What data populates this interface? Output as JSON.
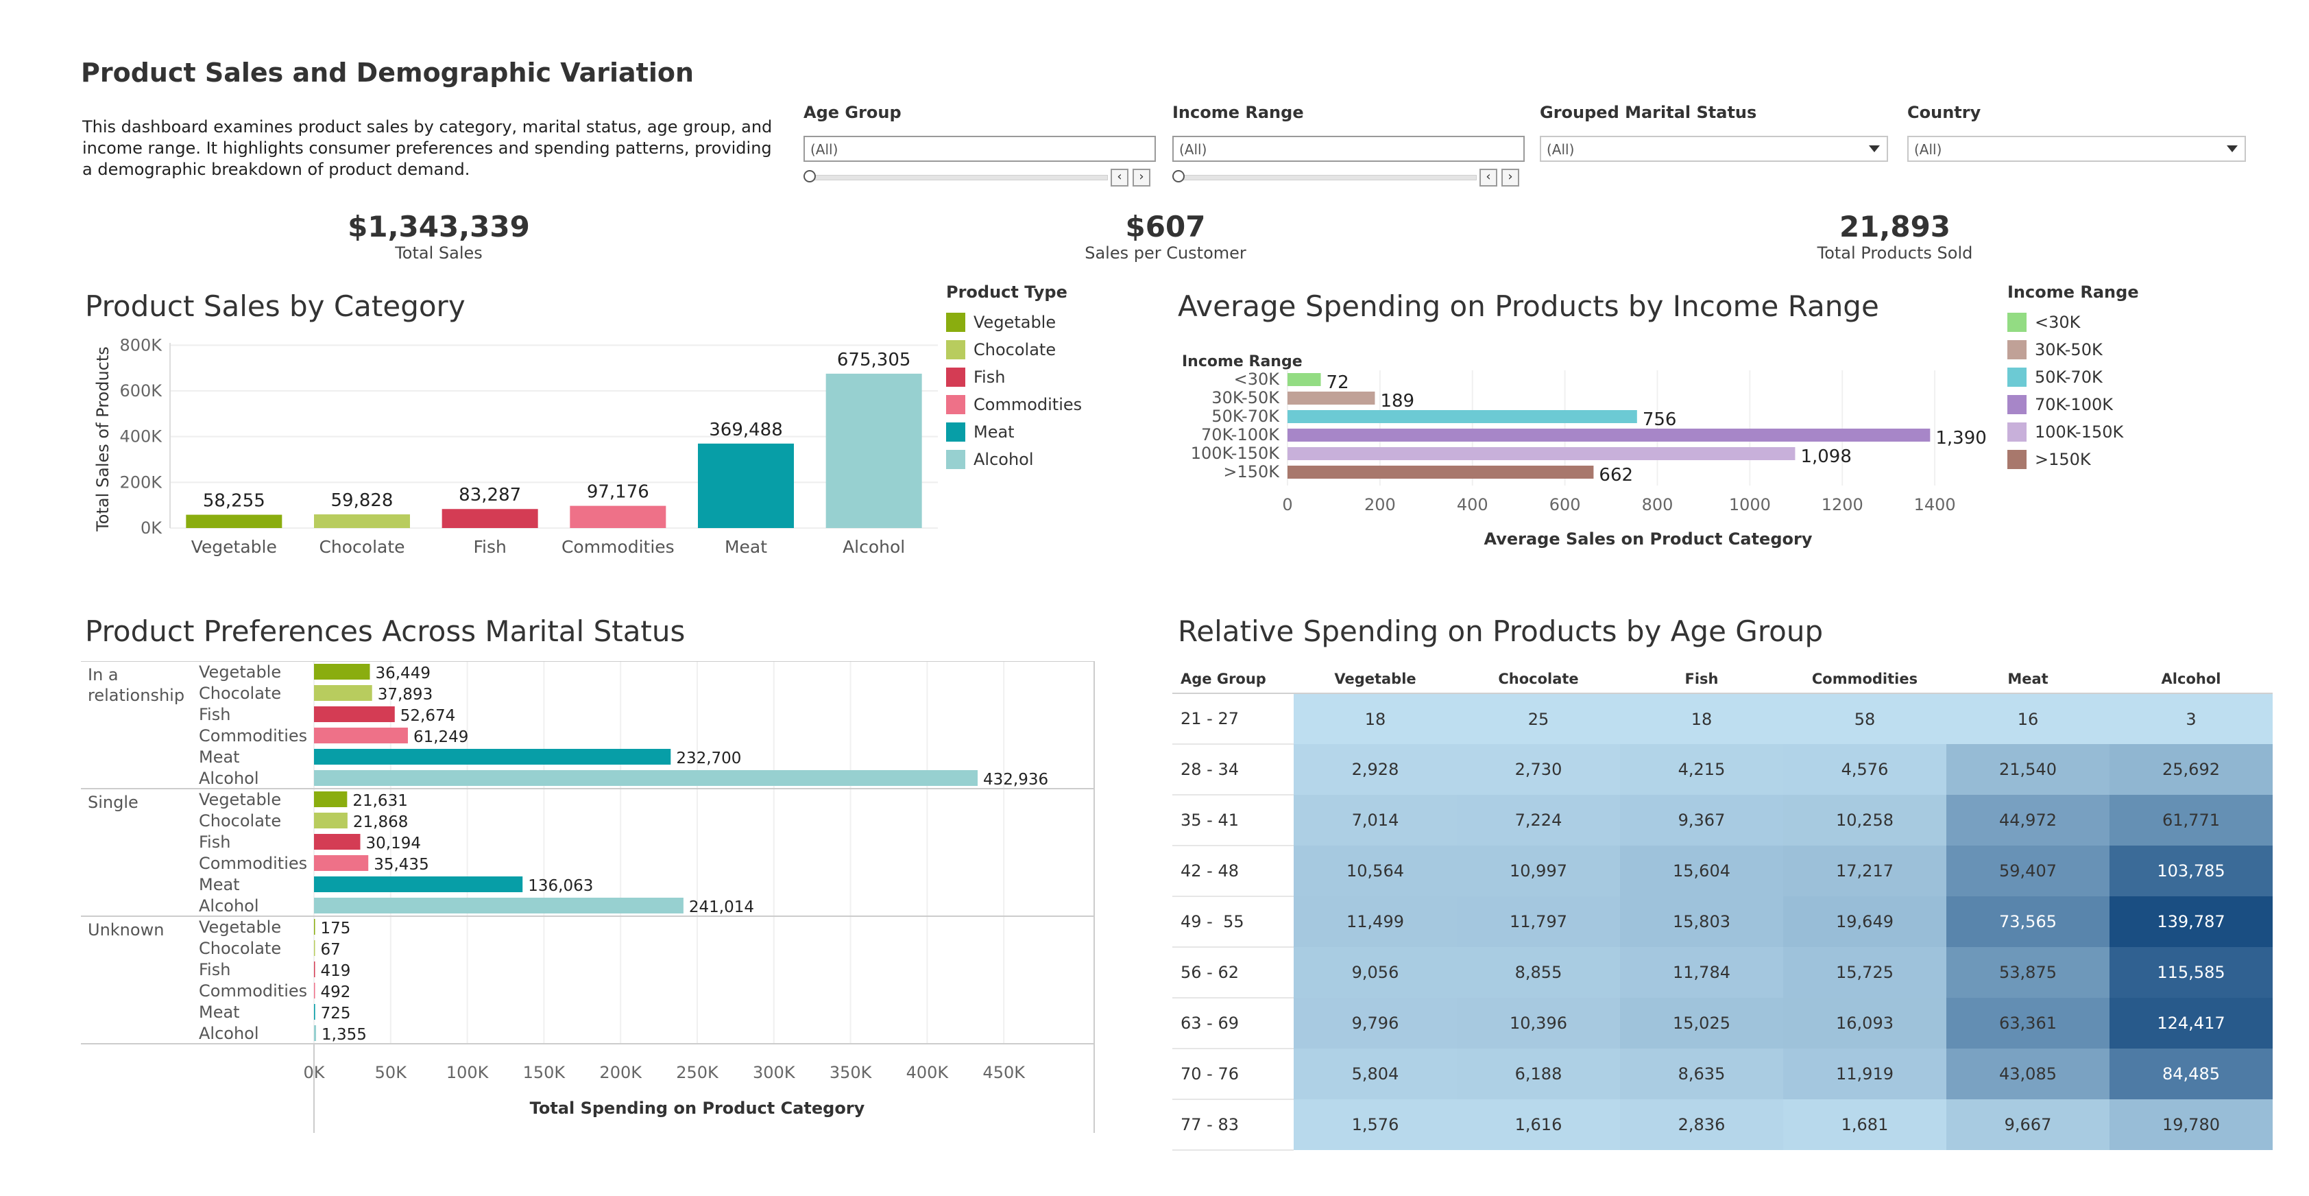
{
  "dashboard": {
    "title": "Product Sales and Demographic Variation",
    "description": "This dashboard examines product sales by category, marital status, age group, and income range. It highlights consumer preferences and spending patterns, providing a demographic breakdown of product demand."
  },
  "filters": {
    "age_group": {
      "label": "Age Group",
      "value": "(All)"
    },
    "income_range": {
      "label": "Income Range",
      "value": "(All)"
    },
    "marital_status": {
      "label": "Grouped Marital Status",
      "value": "(All)"
    },
    "country": {
      "label": "Country",
      "value": "(All)"
    }
  },
  "kpis": [
    {
      "value": "$1,343,339",
      "label": "Total Sales"
    },
    {
      "value": "$607",
      "label": "Sales per Customer"
    },
    {
      "value": "21,893",
      "label": "Total Products Sold"
    }
  ],
  "colors": {
    "Vegetable": "#8aad0f",
    "Chocolate": "#b8cc5e",
    "Fish": "#d43c54",
    "Commodities": "#ee7188",
    "Meat": "#079ea7",
    "Alcohol": "#97d0d0"
  },
  "income_colors": {
    "<30K": "#93dc83",
    "30K-50K": "#c0a197",
    "50K-70K": "#6ccad4",
    "70K-100K": "#a786c8",
    "100K-150K": "#c8b0da",
    ">150K": "#a8786c"
  },
  "chart_data": [
    {
      "type": "bar",
      "title": "Product Sales by Category",
      "ylabel": "Total Sales of Products",
      "categories": [
        "Vegetable",
        "Chocolate",
        "Fish",
        "Commodities",
        "Meat",
        "Alcohol"
      ],
      "values": [
        58255,
        59828,
        83287,
        97176,
        369488,
        675305
      ],
      "value_labels": [
        "58,255",
        "59,828",
        "83,287",
        "97,176",
        "369,488",
        "675,305"
      ],
      "yticks": [
        "0K",
        "200K",
        "400K",
        "600K",
        "800K"
      ],
      "ytick_values": [
        0,
        200000,
        400000,
        600000,
        800000
      ],
      "ylim": [
        0,
        810000
      ],
      "legend": {
        "title": "Product Type",
        "items": [
          "Vegetable",
          "Chocolate",
          "Fish",
          "Commodities",
          "Meat",
          "Alcohol"
        ]
      }
    },
    {
      "type": "bar",
      "title": "Average Spending on Products by Income Range",
      "ylabel": "Income Range",
      "xlabel": "Average Sales on Product Category",
      "categories": [
        "<30K",
        "30K-50K",
        "50K-70K",
        "70K-100K",
        "100K-150K",
        ">150K"
      ],
      "values": [
        72,
        189,
        756,
        1390,
        1098,
        662
      ],
      "value_labels": [
        "72",
        "189",
        "756",
        "1,390",
        "1,098",
        "662"
      ],
      "xticks": [
        "0",
        "200",
        "400",
        "600",
        "800",
        "1000",
        "1200",
        "1400"
      ],
      "xtick_values": [
        0,
        200,
        400,
        600,
        800,
        1000,
        1200,
        1400
      ],
      "xlim": [
        0,
        1560
      ],
      "legend": {
        "title": "Income Range",
        "items": [
          "<30K",
          "30K-50K",
          "50K-70K",
          "70K-100K",
          "100K-150K",
          ">150K"
        ]
      }
    },
    {
      "type": "bar",
      "title": "Product Preferences Across Marital Status",
      "xlabel": "Total Spending on Product Category",
      "xticks": [
        "0K",
        "50K",
        "100K",
        "150K",
        "200K",
        "250K",
        "300K",
        "350K",
        "400K",
        "450K"
      ],
      "xtick_values": [
        0,
        50000,
        100000,
        150000,
        200000,
        250000,
        300000,
        350000,
        400000,
        450000
      ],
      "xlim": [
        0,
        500000
      ],
      "groups": [
        {
          "name": "In a relationship",
          "categories": [
            "Vegetable",
            "Chocolate",
            "Fish",
            "Commodities",
            "Meat",
            "Alcohol"
          ],
          "values": [
            36449,
            37893,
            52674,
            61249,
            232700,
            432936
          ],
          "value_labels": [
            "36,449",
            "37,893",
            "52,674",
            "61,249",
            "232,700",
            "432,936"
          ]
        },
        {
          "name": "Single",
          "categories": [
            "Vegetable",
            "Chocolate",
            "Fish",
            "Commodities",
            "Meat",
            "Alcohol"
          ],
          "values": [
            21631,
            21868,
            30194,
            35435,
            136063,
            241014
          ],
          "value_labels": [
            "21,631",
            "21,868",
            "30,194",
            "35,435",
            "136,063",
            "241,014"
          ]
        },
        {
          "name": "Unknown",
          "categories": [
            "Vegetable",
            "Chocolate",
            "Fish",
            "Commodities",
            "Meat",
            "Alcohol"
          ],
          "values": [
            175,
            67,
            419,
            492,
            725,
            1355
          ],
          "value_labels": [
            "175",
            "67",
            "419",
            "492",
            "725",
            "1,355"
          ]
        }
      ]
    },
    {
      "type": "heatmap",
      "title": "Relative Spending on Products by Age Group",
      "row_header": "Age Group",
      "columns": [
        "Vegetable",
        "Chocolate",
        "Fish",
        "Commodities",
        "Meat",
        "Alcohol"
      ],
      "rows": [
        "21 - 27",
        "28 - 34",
        "35 - 41",
        "42 - 48",
        "49 -  55",
        "56 - 62",
        "63 - 69",
        "70 - 76",
        "77 - 83"
      ],
      "values": [
        [
          18,
          25,
          18,
          58,
          16,
          3
        ],
        [
          2928,
          2730,
          4215,
          4576,
          21540,
          25692
        ],
        [
          7014,
          7224,
          9367,
          10258,
          44972,
          61771
        ],
        [
          10564,
          10997,
          15604,
          17217,
          59407,
          103785
        ],
        [
          11499,
          11797,
          15803,
          19649,
          73565,
          139787
        ],
        [
          9056,
          8855,
          11784,
          15725,
          53875,
          115585
        ],
        [
          9796,
          10396,
          15025,
          16093,
          63361,
          124417
        ],
        [
          5804,
          6188,
          8635,
          11919,
          43085,
          84485
        ],
        [
          1576,
          1616,
          2836,
          1681,
          9667,
          19780
        ]
      ],
      "value_labels": [
        [
          "18",
          "25",
          "18",
          "58",
          "16",
          "3"
        ],
        [
          "2,928",
          "2,730",
          "4,215",
          "4,576",
          "21,540",
          "25,692"
        ],
        [
          "7,014",
          "7,224",
          "9,367",
          "10,258",
          "44,972",
          "61,771"
        ],
        [
          "10,564",
          "10,997",
          "15,604",
          "17,217",
          "59,407",
          "103,785"
        ],
        [
          "11,499",
          "11,797",
          "15,803",
          "19,649",
          "73,565",
          "139,787"
        ],
        [
          "9,056",
          "8,855",
          "11,784",
          "15,725",
          "53,875",
          "115,585"
        ],
        [
          "9,796",
          "10,396",
          "15,025",
          "16,093",
          "63,361",
          "124,417"
        ],
        [
          "5,804",
          "6,188",
          "8,635",
          "11,919",
          "43,085",
          "84,485"
        ],
        [
          "1,576",
          "1,616",
          "2,836",
          "1,681",
          "9,667",
          "19,780"
        ]
      ]
    }
  ]
}
